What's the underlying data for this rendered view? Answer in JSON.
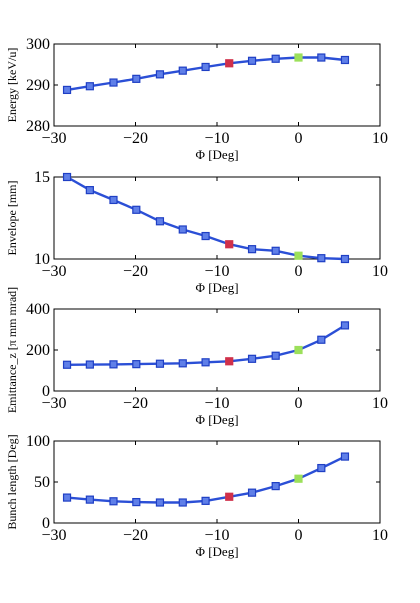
{
  "figure": {
    "style": {
      "line_color": "#2b4fd6",
      "marker_edge": "#1f3fc4",
      "marker_face": "#5f7fe8",
      "highlight_red": "#d0304a",
      "highlight_green": "#9ce05a",
      "axis_color": "#000000"
    }
  },
  "chart_data": [
    {
      "type": "line",
      "ylabel": "Energy [keV/u]",
      "xlabel": "Φ [Deg]",
      "xlim": [
        -30,
        10
      ],
      "ylim": [
        280,
        300
      ],
      "xticks": [
        -30,
        -20,
        -10,
        0,
        10
      ],
      "yticks": [
        280,
        290,
        300
      ],
      "grid": false,
      "series": [
        {
          "x": [
            -28.4,
            -25.6,
            -22.7,
            -19.9,
            -17.0,
            -14.2,
            -11.4,
            -8.5,
            -5.7,
            -2.8,
            0.0,
            2.8,
            5.7
          ],
          "y": [
            288.8,
            289.7,
            290.6,
            291.5,
            292.6,
            293.5,
            294.4,
            295.3,
            295.9,
            296.4,
            296.7,
            296.7,
            296.1
          ]
        }
      ],
      "highlights": [
        {
          "x": -8.5,
          "color": "red"
        },
        {
          "x": 0.0,
          "color": "green"
        }
      ]
    },
    {
      "type": "line",
      "ylabel": "Envelope [mm]",
      "xlabel": "Φ [Deg]",
      "xlim": [
        -30,
        10
      ],
      "ylim": [
        10,
        15
      ],
      "xticks": [
        -30,
        -20,
        -10,
        0,
        10
      ],
      "yticks": [
        10,
        15
      ],
      "grid": false,
      "series": [
        {
          "x": [
            -28.4,
            -25.6,
            -22.7,
            -19.9,
            -17.0,
            -14.2,
            -11.4,
            -8.5,
            -5.7,
            -2.8,
            0.0,
            2.8,
            5.7
          ],
          "y": [
            15.0,
            14.2,
            13.6,
            13.0,
            12.3,
            11.8,
            11.4,
            10.9,
            10.6,
            10.5,
            10.2,
            10.05,
            10.0
          ]
        }
      ],
      "highlights": [
        {
          "x": -8.5,
          "color": "red"
        },
        {
          "x": 0.0,
          "color": "green"
        }
      ]
    },
    {
      "type": "line",
      "ylabel": "Emittance_z [π mm mrad]",
      "xlabel": "Φ [Deg]",
      "xlim": [
        -30,
        10
      ],
      "ylim": [
        0,
        400
      ],
      "xticks": [
        -30,
        -20,
        -10,
        0,
        10
      ],
      "yticks": [
        0,
        200,
        400
      ],
      "grid": false,
      "series": [
        {
          "x": [
            -28.4,
            -25.6,
            -22.7,
            -19.9,
            -17.0,
            -14.2,
            -11.4,
            -8.5,
            -5.7,
            -2.8,
            0.0,
            2.8,
            5.7
          ],
          "y": [
            128,
            129,
            130,
            131,
            133,
            135,
            140,
            145,
            157,
            172,
            200,
            250,
            320
          ]
        }
      ],
      "highlights": [
        {
          "x": -8.5,
          "color": "red"
        },
        {
          "x": 0.0,
          "color": "green"
        }
      ]
    },
    {
      "type": "line",
      "ylabel": "Bunch length [Deg]",
      "xlabel": "Φ [Deg]",
      "xlim": [
        -30,
        10
      ],
      "ylim": [
        0,
        100
      ],
      "xticks": [
        -30,
        -20,
        -10,
        0,
        10
      ],
      "yticks": [
        0,
        50,
        100
      ],
      "grid": false,
      "series": [
        {
          "x": [
            -28.4,
            -25.6,
            -22.7,
            -19.9,
            -17.0,
            -14.2,
            -11.4,
            -8.5,
            -5.7,
            -2.8,
            0.0,
            2.8,
            5.7
          ],
          "y": [
            31,
            28.5,
            26.5,
            25.5,
            25,
            25,
            27,
            32,
            37,
            45,
            54,
            67,
            81
          ]
        }
      ],
      "highlights": [
        {
          "x": -8.5,
          "color": "red"
        },
        {
          "x": 0.0,
          "color": "green"
        }
      ]
    }
  ]
}
